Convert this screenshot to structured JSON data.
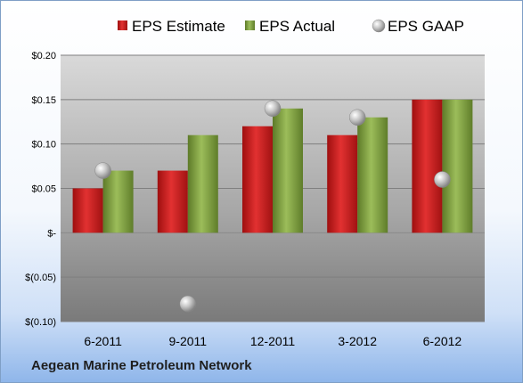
{
  "chart_data": {
    "type": "bar",
    "categories": [
      "6-2011",
      "9-2011",
      "12-2011",
      "3-2012",
      "6-2012"
    ],
    "series": [
      {
        "name": "EPS Estimate",
        "kind": "bar",
        "color": "#cc1f1f",
        "values": [
          0.05,
          0.07,
          0.12,
          0.11,
          0.15
        ]
      },
      {
        "name": "EPS Actual",
        "kind": "bar",
        "color": "#7f9f3f",
        "values": [
          0.07,
          0.11,
          0.14,
          0.13,
          0.15
        ]
      },
      {
        "name": "EPS GAAP",
        "kind": "marker",
        "color": "#9a9a9a",
        "values": [
          0.07,
          -0.08,
          0.14,
          0.13,
          0.06
        ]
      }
    ],
    "y_ticks": [
      {
        "value": 0.2,
        "label": "$0.20"
      },
      {
        "value": 0.15,
        "label": "$0.15"
      },
      {
        "value": 0.1,
        "label": "$0.10"
      },
      {
        "value": 0.05,
        "label": "$0.05"
      },
      {
        "value": 0,
        "label": "$-"
      },
      {
        "value": -0.05,
        "label": "$(0.05)"
      },
      {
        "value": -0.1,
        "label": "$(0.10)"
      }
    ],
    "ylim": [
      -0.1,
      0.2
    ],
    "grid": true,
    "legend_position": "top",
    "title": "",
    "xlabel": "",
    "ylabel": ""
  },
  "footer": {
    "source_label": "Aegean Marine Petroleum Network"
  }
}
